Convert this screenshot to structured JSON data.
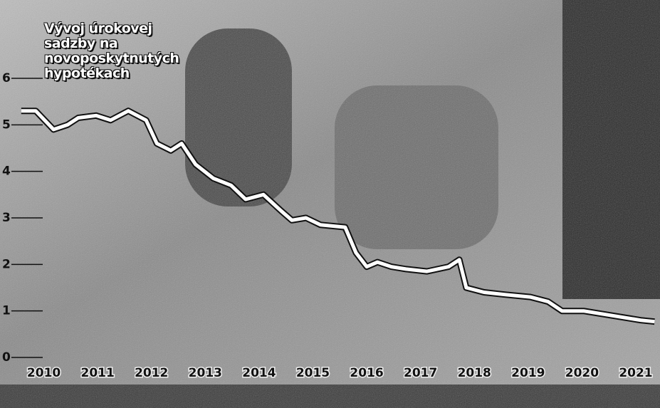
{
  "chart_data": {
    "type": "line",
    "title": "Vývoj úrokovej sadzby na novoposkytnutých hypotékach",
    "xlim": [
      2009.95,
      2021.95
    ],
    "xticks": [
      {
        "value": 2010.5,
        "label": "2010"
      },
      {
        "value": 2011.5,
        "label": "2011"
      },
      {
        "value": 2012.5,
        "label": "2012"
      },
      {
        "value": 2013.5,
        "label": "2013"
      },
      {
        "value": 2014.5,
        "label": "2014"
      },
      {
        "value": 2015.5,
        "label": "2015"
      },
      {
        "value": 2016.5,
        "label": "2016"
      },
      {
        "value": 2017.5,
        "label": "2017"
      },
      {
        "value": 2018.5,
        "label": "2018"
      },
      {
        "value": 2019.5,
        "label": "2019"
      },
      {
        "value": 2020.5,
        "label": "2020"
      },
      {
        "value": 2021.5,
        "label": "2021"
      }
    ],
    "ylim": [
      0,
      6
    ],
    "yticks": [
      0,
      1,
      2,
      3,
      4,
      5,
      6
    ],
    "series": [
      {
        "color": "#ffffff",
        "x": [
          2010.08,
          2010.35,
          2010.68,
          2010.94,
          2011.14,
          2011.47,
          2011.74,
          2012.07,
          2012.4,
          2012.6,
          2012.86,
          2013.06,
          2013.32,
          2013.65,
          2013.98,
          2014.25,
          2014.58,
          2014.91,
          2015.11,
          2015.37,
          2015.64,
          2016.1,
          2016.3,
          2016.5,
          2016.7,
          2016.96,
          2017.23,
          2017.62,
          2018.02,
          2018.22,
          2018.35,
          2018.68,
          2019.08,
          2019.54,
          2019.87,
          2020.13,
          2020.53,
          2021.06,
          2021.59,
          2021.85
        ],
        "values": [
          5.3,
          5.3,
          4.9,
          5.0,
          5.15,
          5.2,
          5.1,
          5.3,
          5.1,
          4.6,
          4.45,
          4.6,
          4.15,
          3.85,
          3.7,
          3.4,
          3.5,
          3.15,
          2.95,
          3.0,
          2.85,
          2.8,
          2.25,
          1.95,
          2.05,
          1.95,
          1.9,
          1.85,
          1.95,
          2.1,
          1.5,
          1.4,
          1.35,
          1.3,
          1.2,
          1.0,
          1.0,
          0.9,
          0.8,
          0.77
        ]
      }
    ]
  }
}
